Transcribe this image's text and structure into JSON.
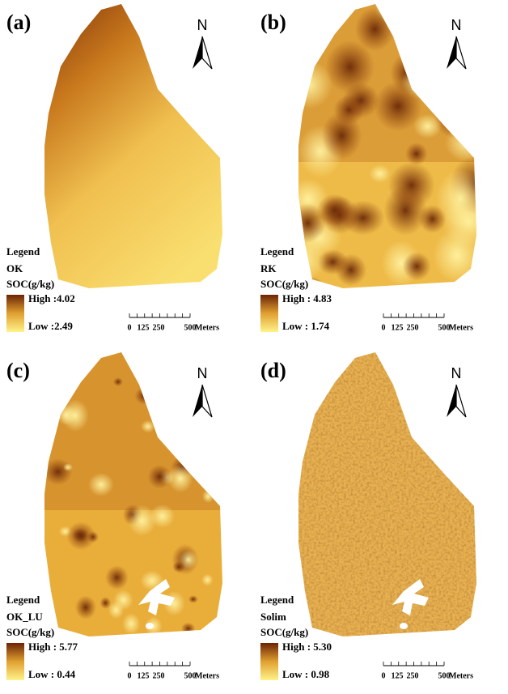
{
  "panels": [
    {
      "label": "(a)",
      "legend_title": "Legend",
      "method": "OK",
      "unit": "SOC(g/kg)",
      "high": "High :4.02",
      "low": "Low :2.49",
      "scale_labels": [
        "0",
        "125",
        "250",
        "500"
      ],
      "scale_unit": "Meters",
      "north": "N"
    },
    {
      "label": "(b)",
      "legend_title": "Legend",
      "method": "RK",
      "unit": "SOC(g/kg)",
      "high": "High : 4.83",
      "low": "Low : 1.74",
      "scale_labels": [
        "0",
        "125",
        "250",
        "500"
      ],
      "scale_unit": "Meters",
      "north": "N"
    },
    {
      "label": "(c)",
      "legend_title": "Legend",
      "method": "OK_LU",
      "unit": "SOC(g/kg)",
      "high": "High : 5.77",
      "low": "Low : 0.44",
      "scale_labels": [
        "0",
        "125",
        "250",
        "500"
      ],
      "scale_unit": "Meters",
      "north": "N"
    },
    {
      "label": "(d)",
      "legend_title": "Legend",
      "method": "Solim",
      "unit": "SOC(g/kg)",
      "high": "High : 5.30",
      "low": "Low : 0.98",
      "scale_labels": [
        "0",
        "125",
        "250",
        "500"
      ],
      "scale_unit": "Meters",
      "north": "N"
    }
  ]
}
